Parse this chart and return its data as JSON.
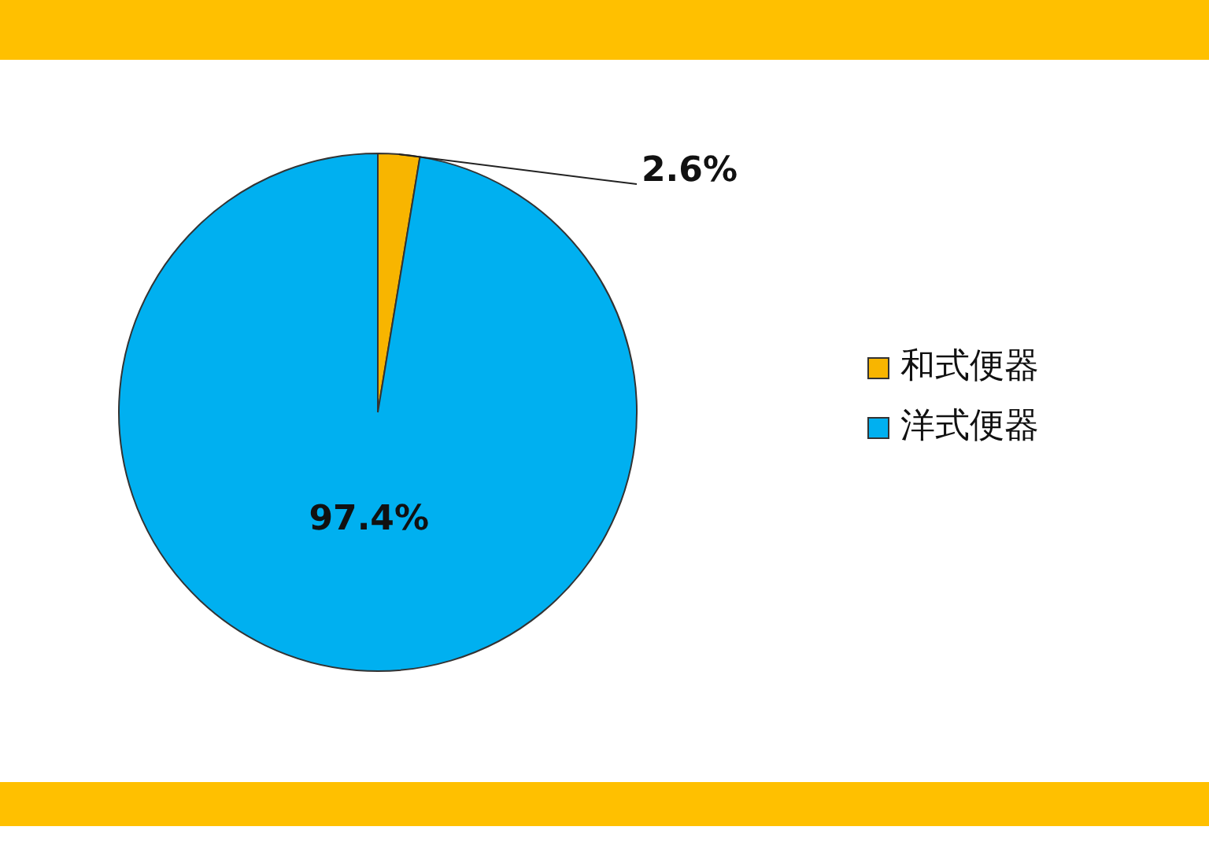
{
  "chart_data": {
    "type": "pie",
    "categories": [
      "和式便器",
      "洋式便器"
    ],
    "values": [
      2.6,
      97.4
    ],
    "colors": [
      "#f8b500",
      "#00b0f0"
    ],
    "value_labels": [
      "2.6%",
      "97.4%"
    ],
    "legend": "right"
  }
}
